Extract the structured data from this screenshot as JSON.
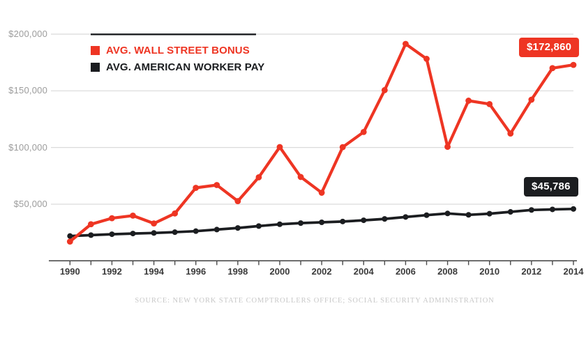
{
  "legend": {
    "items": [
      {
        "label": "AVG. WALL STREET BONUS",
        "color": "#ee3523"
      },
      {
        "label": "AVG. AMERICAN WORKER PAY",
        "color": "#1b1d20"
      }
    ]
  },
  "badges": {
    "bonus_label": "$172,860",
    "bonus_color": "#ee3523",
    "pay_label": "$45,786",
    "pay_color": "#1b1d20"
  },
  "source": "SOURCE: NEW YORK STATE COMPTROLLERS OFFICE; SOCIAL SECURITY ADMINISTRATION",
  "chart_data": {
    "type": "line",
    "title": "",
    "xlabel": "",
    "ylabel": "",
    "x": [
      1990,
      1991,
      1992,
      1993,
      1994,
      1995,
      1996,
      1997,
      1998,
      1999,
      2000,
      2001,
      2002,
      2003,
      2004,
      2005,
      2006,
      2007,
      2008,
      2009,
      2010,
      2011,
      2012,
      2013,
      2014
    ],
    "series": [
      {
        "name": "AVG. WALL STREET BONUS",
        "color": "#ee3523",
        "values": [
          17000,
          32300,
          37600,
          39900,
          33000,
          41800,
          64400,
          66900,
          52700,
          73700,
          100400,
          74000,
          60100,
          100300,
          113700,
          150600,
          191400,
          178200,
          100600,
          141300,
          138300,
          112300,
          142200,
          170000,
          172860
        ]
      },
      {
        "name": "AVG. AMERICAN WORKER PAY",
        "color": "#1b1d20",
        "values": [
          21900,
          22700,
          23500,
          24100,
          24600,
          25300,
          26200,
          27600,
          29000,
          30700,
          32300,
          33300,
          34000,
          34700,
          35800,
          37000,
          38700,
          40300,
          41800,
          40600,
          41600,
          43200,
          44900,
          45400,
          45786
        ]
      }
    ],
    "y_ticks": [
      {
        "label": "$200,000",
        "value": 200000
      },
      {
        "label": "$150,000",
        "value": 150000
      },
      {
        "label": "$100,000",
        "value": 100000
      },
      {
        "label": "$50,000",
        "value": 50000
      }
    ],
    "x_tick_labels": [
      "1990",
      "1992",
      "1994",
      "1996",
      "1998",
      "2000",
      "2002",
      "2004",
      "2006",
      "2008",
      "2010",
      "2012",
      "2014"
    ],
    "ylim": [
      0,
      230000
    ],
    "grid": "horizontal-only",
    "legend_position": "top-left",
    "end_value_labels": [
      "$172,860",
      "$45,786"
    ]
  }
}
